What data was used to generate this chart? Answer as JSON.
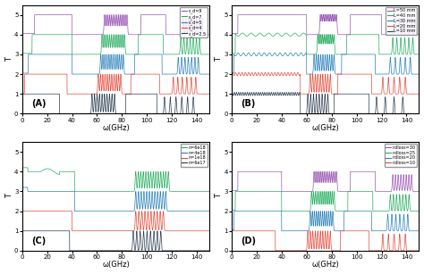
{
  "panels": [
    "A",
    "B",
    "C",
    "D"
  ],
  "xlabel": "ω(GHz)",
  "ylabel": "T",
  "xlim": [
    0,
    150
  ],
  "ylim": [
    0,
    5.5
  ],
  "yticks": [
    0,
    1,
    2,
    3,
    4,
    5
  ],
  "xticks": [
    0,
    20,
    40,
    60,
    80,
    100,
    120,
    140
  ],
  "A_labels": [
    "ε_d=9",
    "ε_d=7",
    "ε_d=5",
    "ε_d=4",
    "ε_d=2.5"
  ],
  "A_colors": [
    "#9b59b6",
    "#27ae60",
    "#2980b9",
    "#e74c3c",
    "#2c3e50"
  ],
  "A_offsets": [
    4,
    3,
    2,
    1,
    0
  ],
  "B_labels": [
    "L=50 mm",
    "L=40 mm",
    "L=30 mm",
    "L=20 mm",
    "L=10 mm"
  ],
  "B_colors": [
    "#9b59b6",
    "#27ae60",
    "#2980b9",
    "#e74c3c",
    "#2c3e50"
  ],
  "B_offsets": [
    4,
    3,
    2,
    1,
    0
  ],
  "C_labels": [
    "n=6e18",
    "n=4e18",
    "n=1e18",
    "n=6e17"
  ],
  "C_colors": [
    "#27ae60",
    "#2980b9",
    "#e74c3c",
    "#2c3e50"
  ],
  "C_offsets": [
    3,
    2,
    1,
    0
  ],
  "D_labels": [
    "ndloss=30",
    "ndloss=25",
    "ndloss=20",
    "ndloss=10"
  ],
  "D_colors": [
    "#9b59b6",
    "#27ae60",
    "#2980b9",
    "#e74c3c"
  ],
  "D_offsets": [
    3,
    2,
    1,
    0
  ],
  "bg_color": "#f0f0f0"
}
